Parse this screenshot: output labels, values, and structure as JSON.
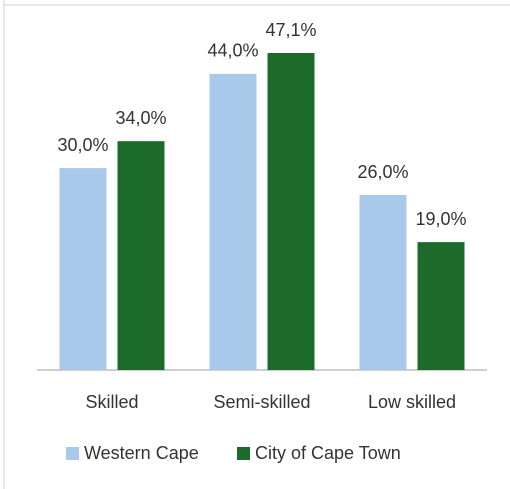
{
  "chart_data": {
    "type": "bar",
    "categories": [
      "Skilled",
      "Semi-skilled",
      "Low skilled"
    ],
    "series": [
      {
        "name": "Western Cape",
        "color": "#a9c9ea",
        "values": [
          30.0,
          44.0,
          26.0
        ],
        "value_labels": [
          "30,0%",
          "44,0%",
          "26,0%"
        ]
      },
      {
        "name": "City of Cape Town",
        "color": "#1c6b2b",
        "values": [
          34.0,
          47.1,
          19.0
        ],
        "value_labels": [
          "34,0%",
          "47,1%",
          "19,0%"
        ]
      }
    ],
    "legend": "bottom"
  }
}
